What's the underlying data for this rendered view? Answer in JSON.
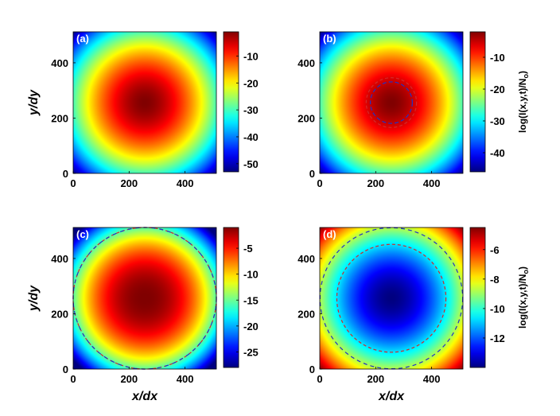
{
  "figure": {
    "description_panels": 4
  },
  "chart_data": [
    {
      "type": "heatmap",
      "panel_label": "(a)",
      "xlabel": "",
      "ylabel": "y/dy",
      "x_ticks": [
        0,
        200,
        400
      ],
      "y_ticks": [
        0,
        200,
        400
      ],
      "xlim": [
        0,
        512
      ],
      "ylim": [
        0,
        512
      ],
      "colormap": "jet",
      "colorbar": {
        "min": -53,
        "max": -1,
        "ticks": [
          -10,
          -20,
          -30,
          -40,
          -50
        ],
        "label": ""
      },
      "field": {
        "center": [
          256,
          256
        ],
        "shape": "radial",
        "value_at_center": -1,
        "value_at_corner": -53,
        "profile": "quadratic"
      },
      "circles": []
    },
    {
      "type": "heatmap",
      "panel_label": "(b)",
      "xlabel": "",
      "ylabel": "",
      "x_ticks": [
        0,
        200,
        400
      ],
      "y_ticks": [
        0,
        200,
        400
      ],
      "xlim": [
        0,
        512
      ],
      "ylim": [
        0,
        512
      ],
      "colormap": "jet",
      "colorbar": {
        "min": -46,
        "max": -2,
        "ticks": [
          -10,
          -20,
          -30,
          -40
        ],
        "label": "log(I(x,y,t)/N",
        "label_sub": "o",
        "label_end": ")"
      },
      "field": {
        "center": [
          256,
          256
        ],
        "shape": "radial",
        "value_at_center": -2,
        "value_at_corner": -46,
        "profile": "quadratic"
      },
      "circles": [
        {
          "center": [
            256,
            256
          ],
          "radius": 90,
          "color": "#d22a2a",
          "dash": "4,3"
        },
        {
          "center": [
            256,
            256
          ],
          "radius": 75,
          "color": "#1f32c8",
          "dash": "5,3"
        }
      ]
    },
    {
      "type": "heatmap",
      "panel_label": "(c)",
      "xlabel": "x/dx",
      "ylabel": "y/dy",
      "x_ticks": [
        0,
        200,
        400
      ],
      "y_ticks": [
        0,
        200,
        400
      ],
      "xlim": [
        0,
        512
      ],
      "ylim": [
        0,
        512
      ],
      "colormap": "jet",
      "colorbar": {
        "min": -28,
        "max": -1,
        "ticks": [
          -5,
          -10,
          -15,
          -20,
          -25
        ],
        "label": ""
      },
      "field": {
        "center": [
          256,
          256
        ],
        "shape": "radial",
        "value_at_center": -1,
        "value_at_corner": -28,
        "profile": "plateau"
      },
      "circles": [
        {
          "center": [
            256,
            256
          ],
          "radius": 256,
          "color": "#d22a2a",
          "dash": "4,3"
        },
        {
          "center": [
            256,
            256
          ],
          "radius": 256,
          "color": "#1f32c8",
          "dash": "5,5"
        }
      ]
    },
    {
      "type": "heatmap",
      "panel_label": "(d)",
      "xlabel": "x/dx",
      "ylabel": "",
      "x_ticks": [
        0,
        200,
        400
      ],
      "y_ticks": [
        0,
        200,
        400
      ],
      "xlim": [
        0,
        512
      ],
      "ylim": [
        0,
        512
      ],
      "colormap": "jet",
      "colorbar": {
        "min": -14,
        "max": -4.5,
        "ticks": [
          -6,
          -8,
          -10,
          -12
        ],
        "label": "log(I(x,y,t)/N",
        "label_sub": "o",
        "label_end": ")"
      },
      "field": {
        "center": [
          256,
          256
        ],
        "shape": "radial",
        "value_at_center": -14,
        "value_at_corner": -4.5,
        "profile": "quadratic"
      },
      "circles": [
        {
          "center": [
            256,
            256
          ],
          "radius": 255,
          "color": "#1f32c8",
          "dash": "5,4"
        },
        {
          "center": [
            256,
            256
          ],
          "radius": 195,
          "color": "#d22a2a",
          "dash": "4,3"
        }
      ]
    }
  ]
}
